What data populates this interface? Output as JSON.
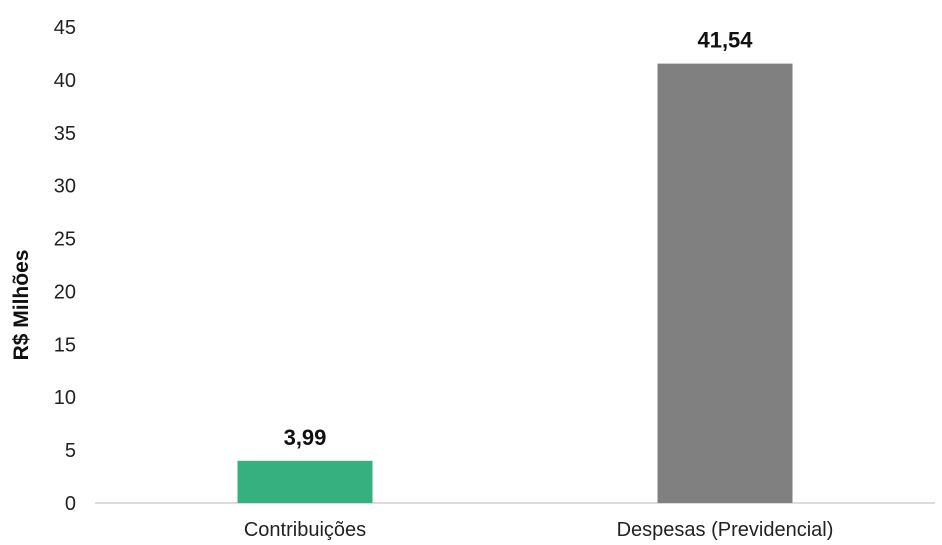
{
  "chart_data": {
    "type": "bar",
    "title": "",
    "xlabel": "",
    "ylabel": "R$ Milhões",
    "categories": [
      "Contribuições",
      "Despesas (Previdencial)"
    ],
    "values": [
      3.99,
      41.54
    ],
    "data_labels": [
      "3,99",
      "41,54"
    ],
    "bar_colors": [
      "#36b07f",
      "#808080"
    ],
    "ylim": [
      0,
      45
    ],
    "yticks": [
      0,
      5,
      10,
      15,
      20,
      25,
      30,
      35,
      40,
      45
    ],
    "grid": false,
    "legend": "none"
  }
}
